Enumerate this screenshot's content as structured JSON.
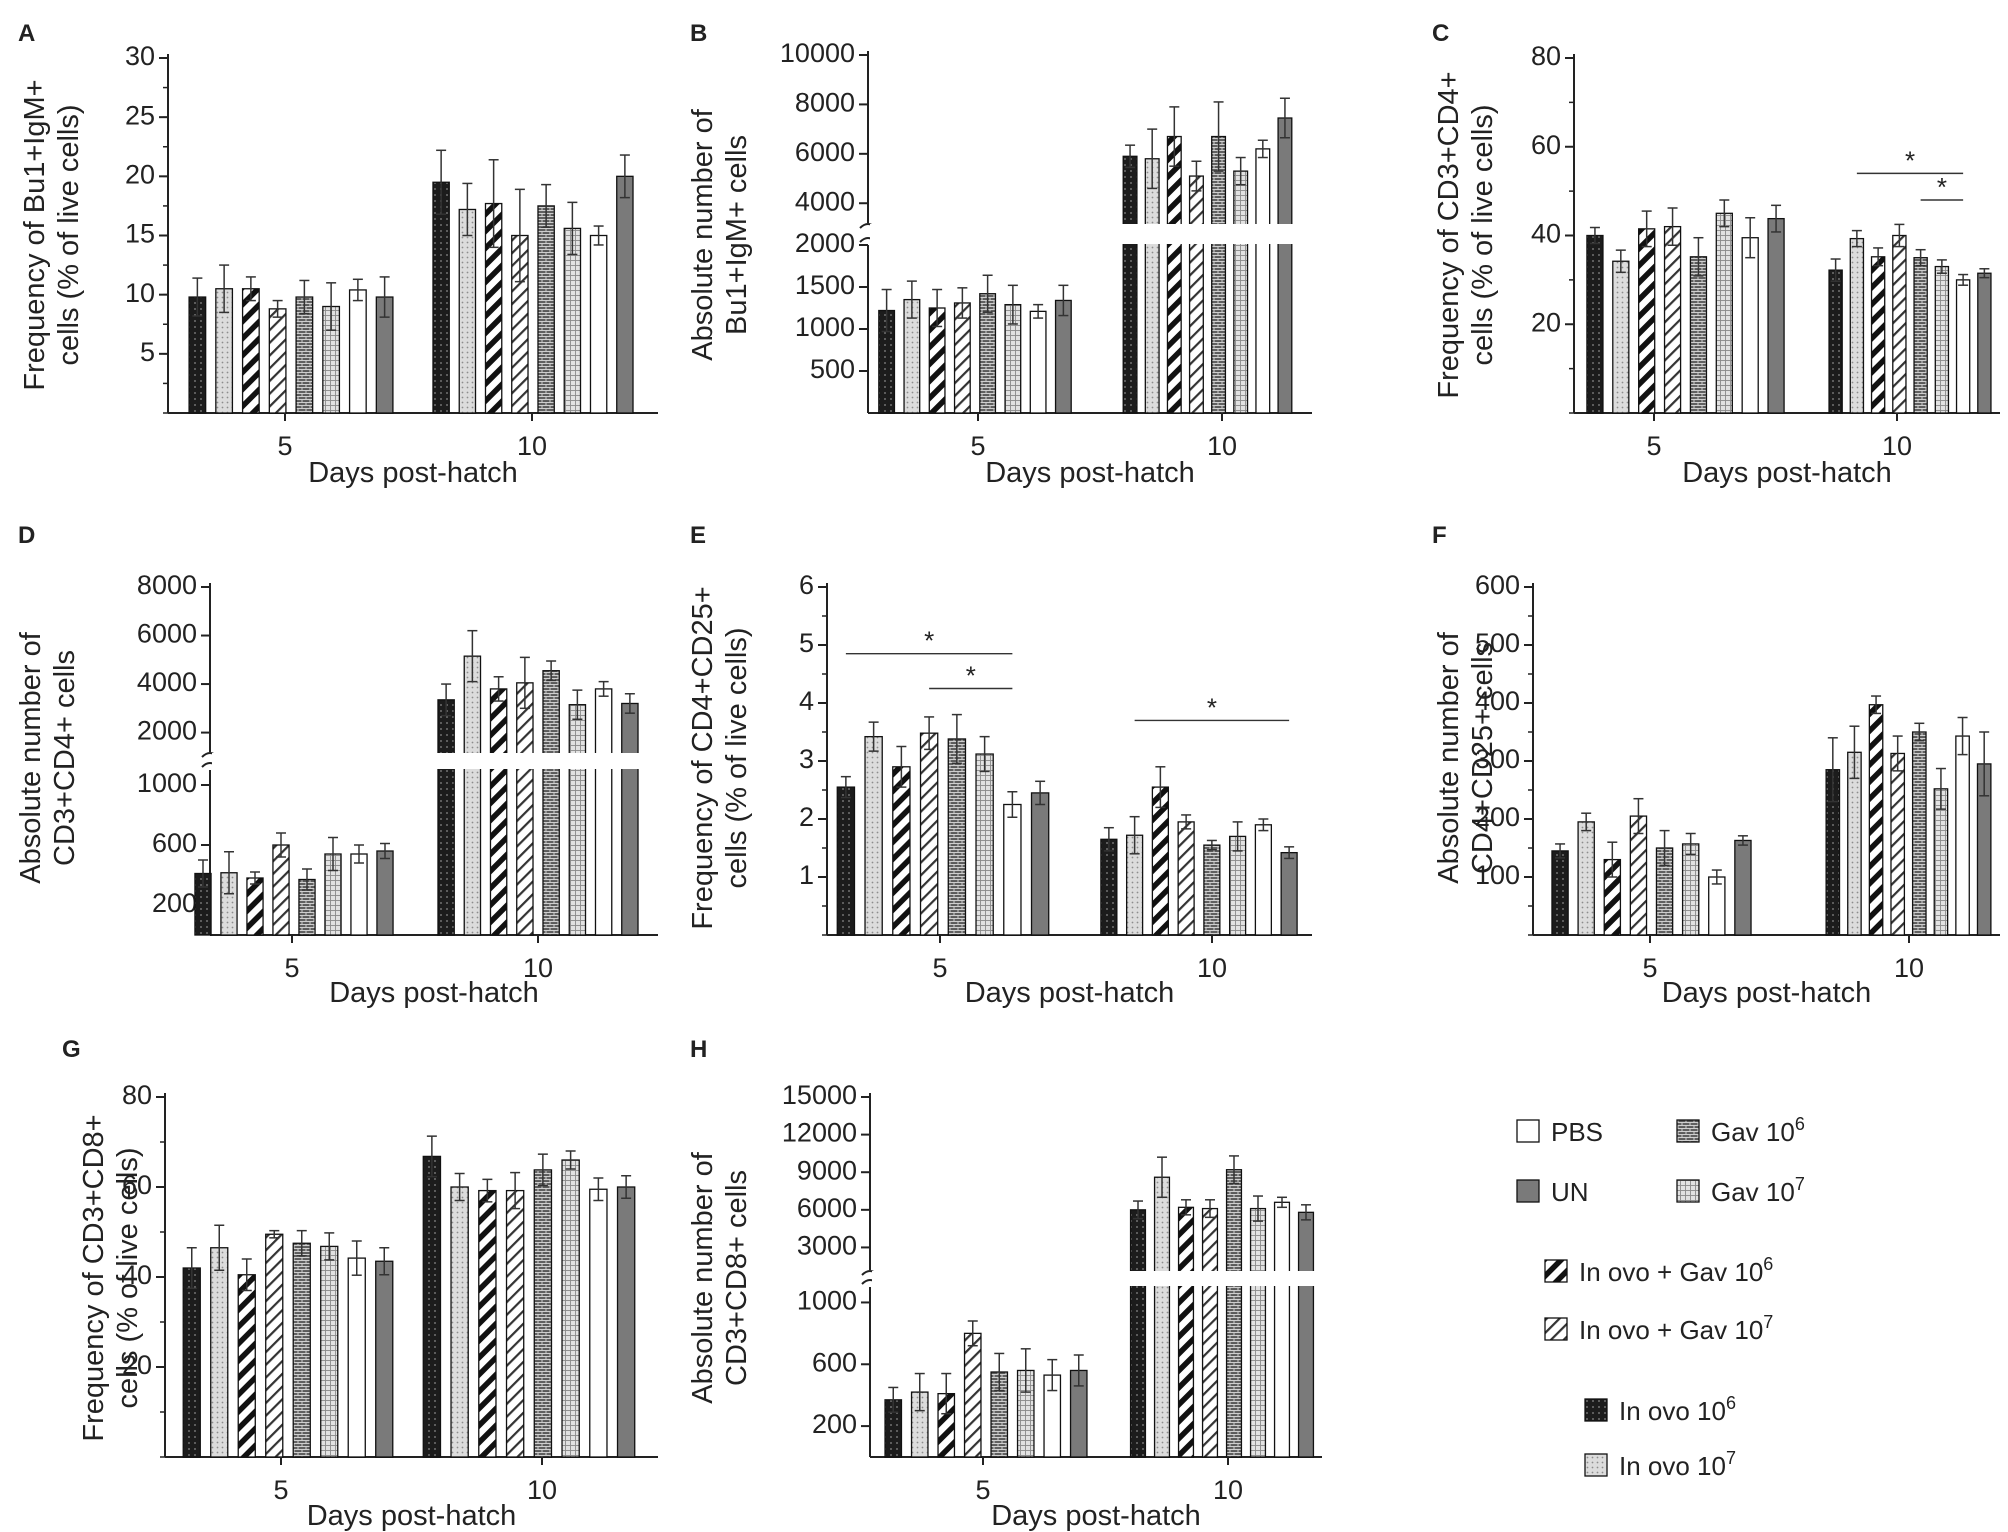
{
  "figure": {
    "group_legend": [
      {
        "key": "PBS",
        "label": "PBS",
        "fill": "#ffffff",
        "pattern": "none"
      },
      {
        "key": "UN",
        "label": "UN",
        "fill": "#7a7a7a",
        "pattern": "none"
      },
      {
        "key": "gav6",
        "label": "Gav 10",
        "sup": "6",
        "fill": "#5c5c5c",
        "pattern": "brick"
      },
      {
        "key": "gav7",
        "label": "Gav 10",
        "sup": "7",
        "fill": "#cfcfcf",
        "pattern": "grid"
      },
      {
        "key": "io_gav6",
        "label": "In ovo + Gav 10",
        "sup": "6",
        "fill": "#ffffff",
        "pattern": "thick-diag"
      },
      {
        "key": "io_gav7",
        "label": "In ovo + Gav 10",
        "sup": "7",
        "fill": "#ffffff",
        "pattern": "thin-diag"
      },
      {
        "key": "io6",
        "label": "In ovo 10",
        "sup": "6",
        "fill": "#1c1c1c",
        "pattern": "dots-dark"
      },
      {
        "key": "io7",
        "label": "In ovo 10",
        "sup": "7",
        "fill": "#d8d8d8",
        "pattern": "dots-light"
      }
    ],
    "colors": {
      "axis": "#222222",
      "bar_edge": "#111111",
      "error_bar": "#333333"
    }
  },
  "chart_data": [
    {
      "panel": "A",
      "type": "bar",
      "xlabel": "Days post-hatch",
      "ylabel": [
        "Frequency of Bu1+IgM+",
        "cells (% of live cells)"
      ],
      "categories": [
        "5",
        "10"
      ],
      "series_order": [
        "io6",
        "io7",
        "io_gav6",
        "io_gav7",
        "gav6",
        "gav7",
        "PBS",
        "UN"
      ],
      "ylim": [
        0,
        30
      ],
      "yticks": [
        "5",
        "10",
        "15",
        "20",
        "25",
        "30"
      ],
      "values": [
        [
          9.8,
          10.5,
          10.5,
          8.8,
          9.8,
          9.0,
          10.4,
          9.8
        ],
        [
          19.5,
          17.2,
          17.7,
          15.0,
          17.5,
          15.6,
          15.0,
          20.0
        ]
      ],
      "errors": [
        [
          1.6,
          2.0,
          1.0,
          0.7,
          1.4,
          2.0,
          0.9,
          1.7
        ],
        [
          2.7,
          2.2,
          3.7,
          3.9,
          1.8,
          2.2,
          0.8,
          1.8
        ]
      ],
      "significance": []
    },
    {
      "panel": "B",
      "type": "bar",
      "xlabel": "Days post-hatch",
      "ylabel": [
        "Absolute number of",
        "Bu1+IgM+ cells"
      ],
      "categories": [
        "5",
        "10"
      ],
      "series_order": [
        "io6",
        "io7",
        "io_gav6",
        "io_gav7",
        "gav6",
        "gav7",
        "PBS",
        "UN"
      ],
      "broken_axis": {
        "lower": [
          0,
          2000
        ],
        "upper": [
          3200,
          10000
        ]
      },
      "yticks_lower": [
        "500",
        "1000",
        "1500",
        "2000"
      ],
      "yticks_upper": [
        "4000",
        "6000",
        "8000",
        "10000"
      ],
      "values": [
        [
          1220,
          1350,
          1250,
          1310,
          1420,
          1290,
          1210,
          1340
        ],
        [
          5900,
          5800,
          6700,
          5100,
          6700,
          5300,
          6200,
          7450
        ]
      ],
      "errors": [
        [
          250,
          220,
          220,
          180,
          220,
          230,
          80,
          180
        ],
        [
          450,
          1200,
          1200,
          600,
          1400,
          550,
          350,
          800
        ]
      ],
      "significance": []
    },
    {
      "panel": "C",
      "type": "bar",
      "xlabel": "Days post-hatch",
      "ylabel": [
        "Frequency of CD3+CD4+",
        "cells (% of live cells)"
      ],
      "categories": [
        "5",
        "10"
      ],
      "series_order": [
        "io6",
        "io7",
        "io_gav6",
        "io_gav7",
        "gav6",
        "gav7",
        "PBS",
        "UN"
      ],
      "ylim": [
        0,
        80
      ],
      "yticks": [
        "20",
        "40",
        "60",
        "80"
      ],
      "values": [
        [
          40.0,
          34.2,
          41.5,
          42.0,
          35.2,
          45.0,
          39.5,
          43.8
        ],
        [
          32.2,
          39.3,
          35.2,
          40.0,
          35.0,
          33.0,
          30.0,
          31.5
        ]
      ],
      "errors": [
        [
          1.8,
          2.5,
          4.0,
          4.2,
          4.3,
          3.0,
          4.5,
          3.0
        ],
        [
          2.5,
          1.8,
          2.0,
          2.5,
          1.8,
          1.5,
          1.2,
          1.0
        ]
      ],
      "significance": [
        {
          "group": 1,
          "from": 1,
          "to": 6,
          "y": 54,
          "label": "*"
        },
        {
          "group": 1,
          "from": 4,
          "to": 6,
          "y": 48,
          "label": "*"
        }
      ]
    },
    {
      "panel": "D",
      "type": "bar",
      "xlabel": "Days post-hatch",
      "ylabel": [
        "Absolute number of",
        "CD3+CD4+ cells"
      ],
      "categories": [
        "5",
        "10"
      ],
      "series_order": [
        "io6",
        "io7",
        "io_gav6",
        "io_gav7",
        "gav6",
        "gav7",
        "PBS",
        "UN"
      ],
      "broken_axis": {
        "lower": [
          0,
          1100
        ],
        "upper": [
          1200,
          8000
        ]
      },
      "yticks_lower": [
        "200",
        "600",
        "1000"
      ],
      "yticks_upper": [
        "2000",
        "4000",
        "6000",
        "8000"
      ],
      "values": [
        [
          410,
          415,
          380,
          600,
          370,
          540,
          540,
          560
        ],
        [
          3350,
          5150,
          3800,
          4050,
          4550,
          3150,
          3800,
          3200
        ]
      ],
      "errors": [
        [
          90,
          140,
          40,
          80,
          70,
          110,
          60,
          50
        ],
        [
          650,
          1050,
          500,
          1050,
          400,
          600,
          300,
          400
        ]
      ],
      "significance": []
    },
    {
      "panel": "E",
      "type": "bar",
      "xlabel": "Days post-hatch",
      "ylabel": [
        "Frequency of CD4+CD25+",
        "cells (% of live cells)"
      ],
      "categories": [
        "5",
        "10"
      ],
      "series_order": [
        "io6",
        "io7",
        "io_gav6",
        "io_gav7",
        "gav6",
        "gav7",
        "PBS",
        "UN"
      ],
      "ylim": [
        0,
        6
      ],
      "yticks": [
        "1",
        "2",
        "3",
        "4",
        "5",
        "6"
      ],
      "values": [
        [
          2.55,
          3.42,
          2.9,
          3.48,
          3.38,
          3.12,
          2.25,
          2.45
        ],
        [
          1.65,
          1.72,
          2.55,
          1.95,
          1.55,
          1.7,
          1.9,
          1.42
        ]
      ],
      "errors": [
        [
          0.18,
          0.25,
          0.35,
          0.28,
          0.42,
          0.3,
          0.22,
          0.2
        ],
        [
          0.2,
          0.32,
          0.35,
          0.12,
          0.08,
          0.25,
          0.1,
          0.1
        ]
      ],
      "significance": [
        {
          "group": 0,
          "from": 0,
          "to": 6,
          "y": 4.85,
          "label": "*"
        },
        {
          "group": 0,
          "from": 3,
          "to": 6,
          "y": 4.25,
          "label": "*"
        },
        {
          "group": 1,
          "from": 1,
          "to": 7,
          "y": 3.7,
          "label": "*"
        }
      ]
    },
    {
      "panel": "F",
      "type": "bar",
      "xlabel": "Days post-hatch",
      "ylabel": [
        "Absolute number of",
        "CD4+CD25+ cells"
      ],
      "categories": [
        "5",
        "10"
      ],
      "series_order": [
        "io6",
        "io7",
        "io_gav6",
        "io_gav7",
        "gav6",
        "gav7",
        "PBS",
        "UN"
      ],
      "ylim": [
        0,
        600
      ],
      "yticks": [
        "100",
        "200",
        "300",
        "400",
        "500",
        "600"
      ],
      "values": [
        [
          145,
          195,
          130,
          205,
          150,
          157,
          100,
          163
        ],
        [
          285,
          315,
          397,
          313,
          350,
          252,
          343,
          295
        ]
      ],
      "errors": [
        [
          12,
          15,
          30,
          30,
          30,
          18,
          12,
          8
        ],
        [
          55,
          45,
          15,
          30,
          15,
          35,
          32,
          55
        ]
      ],
      "significance": []
    },
    {
      "panel": "G",
      "type": "bar",
      "xlabel": "Days post-hatch",
      "ylabel": [
        "Frequency of CD3+CD8+",
        "cells (% of live cells)"
      ],
      "categories": [
        "5",
        "10"
      ],
      "series_order": [
        "io6",
        "io7",
        "io_gav6",
        "io_gav7",
        "gav6",
        "gav7",
        "PBS",
        "UN"
      ],
      "ylim": [
        0,
        80
      ],
      "yticks": [
        "20",
        "40",
        "60",
        "80"
      ],
      "values": [
        [
          42.0,
          46.5,
          40.5,
          49.5,
          47.5,
          46.8,
          44.2,
          43.5
        ],
        [
          66.8,
          60.0,
          59.2,
          59.2,
          63.8,
          66.0,
          59.5,
          60.0
        ]
      ],
      "errors": [
        [
          4.5,
          5.0,
          3.5,
          0.8,
          2.8,
          3.0,
          3.8,
          3.0
        ],
        [
          4.5,
          3.0,
          2.5,
          4.0,
          3.5,
          2.0,
          2.5,
          2.5
        ]
      ],
      "significance": []
    },
    {
      "panel": "H",
      "type": "bar",
      "xlabel": "Days post-hatch",
      "ylabel": [
        "Absolute number of",
        "CD3+CD8+ cells"
      ],
      "categories": [
        "5",
        "10"
      ],
      "series_order": [
        "io6",
        "io7",
        "io_gav6",
        "io_gav7",
        "gav6",
        "gav7",
        "PBS",
        "UN"
      ],
      "broken_axis": {
        "lower": [
          0,
          1100
        ],
        "upper": [
          1200,
          15000
        ]
      },
      "yticks_lower": [
        "200",
        "600",
        "1000"
      ],
      "yticks_upper": [
        "3000",
        "6000",
        "9000",
        "12000",
        "15000"
      ],
      "values": [
        [
          370,
          420,
          410,
          800,
          550,
          560,
          530,
          560
        ],
        [
          6000,
          8600,
          6200,
          6100,
          9200,
          6100,
          6600,
          5800
        ]
      ],
      "errors": [
        [
          80,
          120,
          130,
          80,
          120,
          140,
          100,
          100
        ],
        [
          700,
          1600,
          600,
          700,
          1100,
          1000,
          400,
          600
        ]
      ],
      "significance": []
    }
  ]
}
